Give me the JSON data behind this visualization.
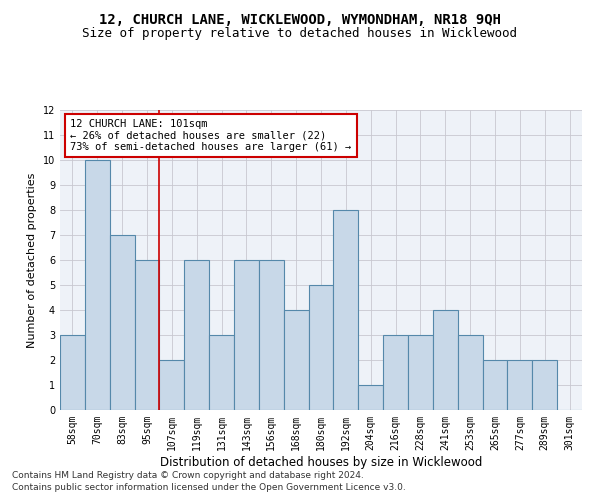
{
  "title": "12, CHURCH LANE, WICKLEWOOD, WYMONDHAM, NR18 9QH",
  "subtitle": "Size of property relative to detached houses in Wicklewood",
  "xlabel": "Distribution of detached houses by size in Wicklewood",
  "ylabel": "Number of detached properties",
  "categories": [
    "58sqm",
    "70sqm",
    "83sqm",
    "95sqm",
    "107sqm",
    "119sqm",
    "131sqm",
    "143sqm",
    "156sqm",
    "168sqm",
    "180sqm",
    "192sqm",
    "204sqm",
    "216sqm",
    "228sqm",
    "241sqm",
    "253sqm",
    "265sqm",
    "277sqm",
    "289sqm",
    "301sqm"
  ],
  "values": [
    3,
    10,
    7,
    6,
    2,
    6,
    3,
    6,
    6,
    4,
    5,
    8,
    1,
    3,
    3,
    4,
    3,
    2,
    2,
    2,
    0
  ],
  "bar_color": "#c8d8e8",
  "bar_edge_color": "#5588aa",
  "bar_linewidth": 0.8,
  "grid_color": "#c8c8d0",
  "annotation_box_text": "12 CHURCH LANE: 101sqm\n← 26% of detached houses are smaller (22)\n73% of semi-detached houses are larger (61) →",
  "annotation_box_color": "#ffffff",
  "annotation_box_edge_color": "#cc0000",
  "red_line_index": 4,
  "red_line_color": "#cc0000",
  "ylim": [
    0,
    12
  ],
  "yticks": [
    0,
    1,
    2,
    3,
    4,
    5,
    6,
    7,
    8,
    9,
    10,
    11,
    12
  ],
  "footer_line1": "Contains HM Land Registry data © Crown copyright and database right 2024.",
  "footer_line2": "Contains public sector information licensed under the Open Government Licence v3.0.",
  "title_fontsize": 10,
  "subtitle_fontsize": 9,
  "xlabel_fontsize": 8.5,
  "ylabel_fontsize": 8,
  "tick_fontsize": 7,
  "ann_fontsize": 7.5,
  "footer_fontsize": 6.5,
  "bg_color": "#eef2f8"
}
